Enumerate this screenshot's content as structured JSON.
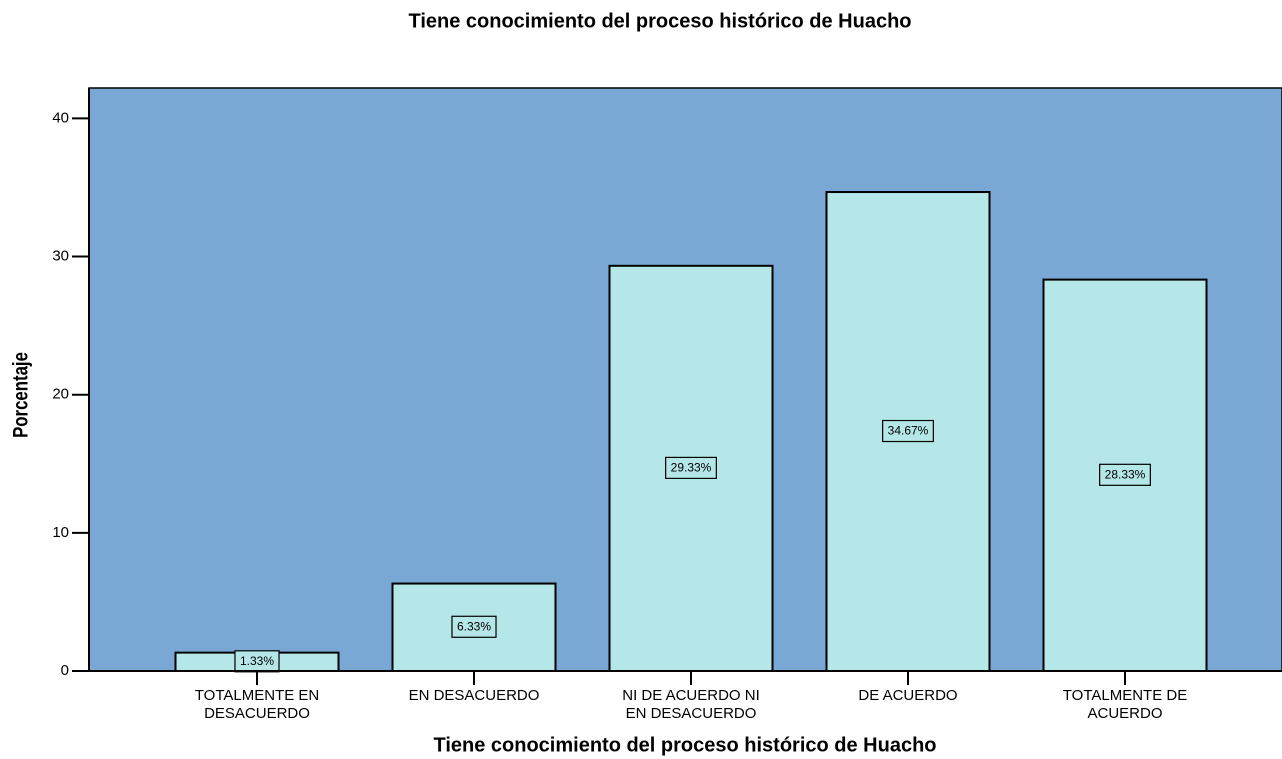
{
  "chart_data": {
    "type": "bar",
    "title": "Tiene conocimiento del proceso histórico de Huacho",
    "x_label": "Tiene conocimiento del proceso histórico de Huacho",
    "y_label": "Porcentaje",
    "categories": [
      "TOTALMENTE EN DESACUERDO",
      "EN DESACUERDO",
      "NI DE ACUERDO NI EN DESACUERDO",
      "DE ACUERDO",
      "TOTALMENTE DE ACUERDO"
    ],
    "values": [
      1.33,
      6.33,
      29.33,
      34.67,
      28.33
    ],
    "value_labels": [
      "1.33%",
      "6.33%",
      "29.33%",
      "34.67%",
      "28.33%"
    ],
    "color": "#b5e6e8",
    "background": "#78a8d3",
    "ylim": [
      0,
      42.2
    ],
    "yticks": [
      0,
      10,
      20,
      30,
      40
    ]
  }
}
